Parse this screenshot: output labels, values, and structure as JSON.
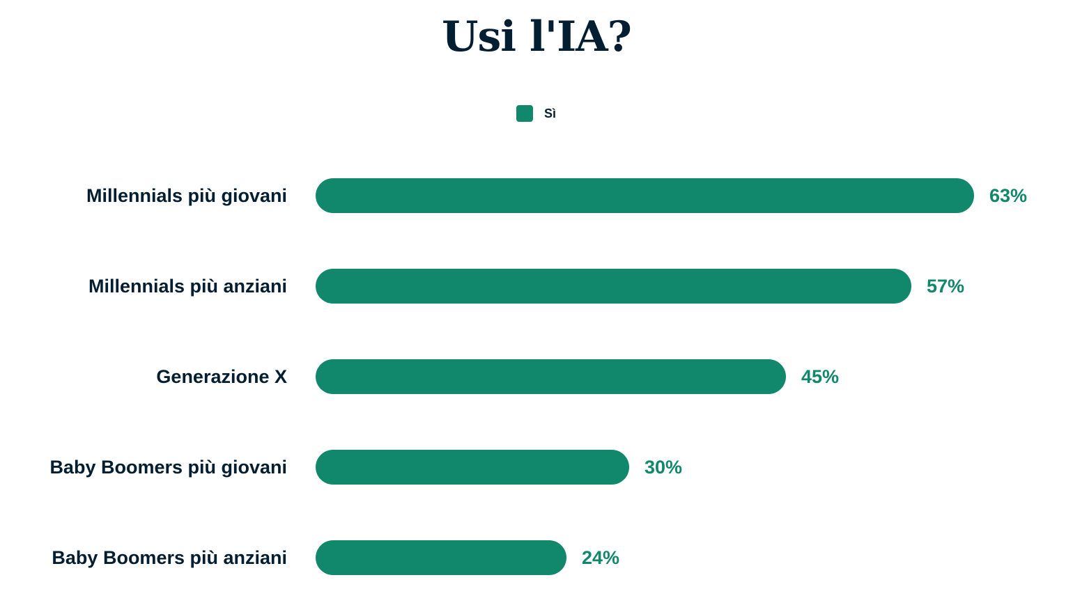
{
  "chart_data": {
    "type": "bar",
    "orientation": "horizontal",
    "title": "Usi l'IA?",
    "categories": [
      "Millennials più giovani",
      "Millennials più anziani",
      "Generazione X",
      "Baby Boomers più giovani",
      "Baby Boomers più anziani"
    ],
    "series": [
      {
        "name": "Sì",
        "values": [
          63,
          57,
          45,
          30,
          24
        ],
        "color": "#11876c"
      }
    ],
    "value_suffix": "%",
    "legend": "top-center",
    "grid": false
  }
}
